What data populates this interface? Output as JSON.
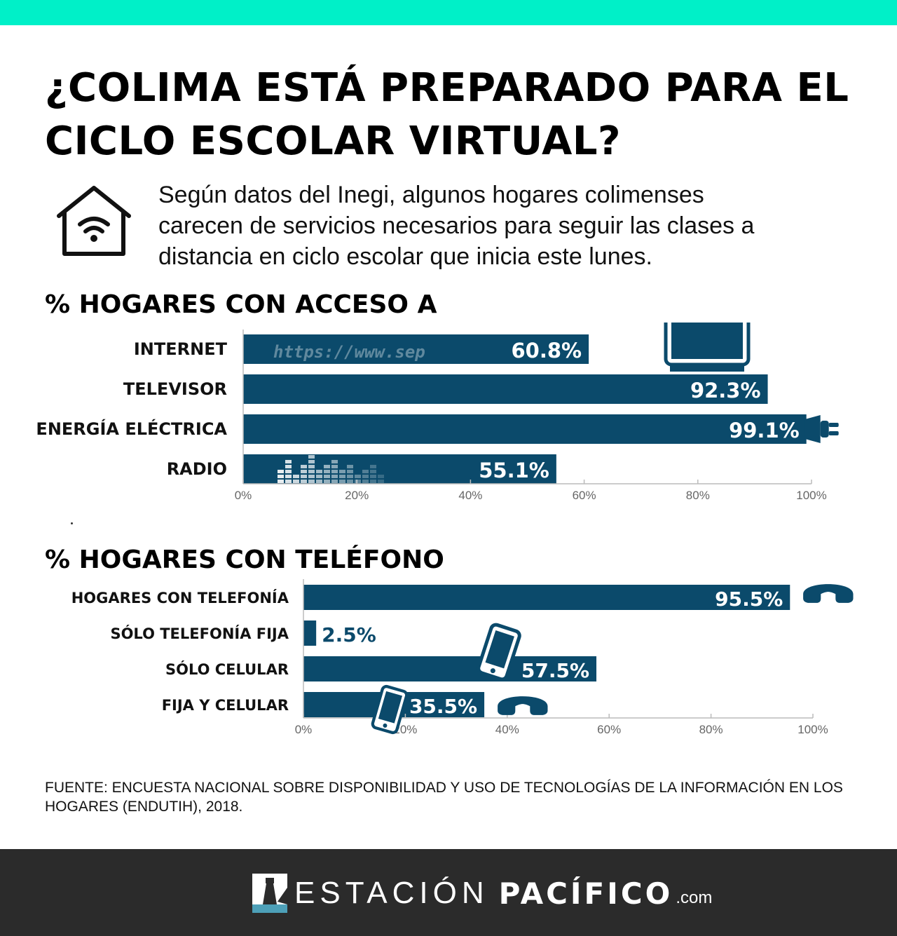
{
  "title": "¿COLIMA ESTÁ PREPARADO PARA EL CICLO ESCOLAR VIRTUAL?",
  "intro": "Según datos del Inegi, algunos hogares colimenses carecen de servicios  necesarios para seguir las clases a distancia en ciclo escolar que inicia este lunes.",
  "colors": {
    "accent": "#00f0c8",
    "bar": "#0b4a6b",
    "footer": "#2b2b2b"
  },
  "icons": [
    "house-wifi-icon",
    "tv-icon",
    "plug-icon",
    "equalizer-icon",
    "url-text-icon",
    "phone-handset-icon",
    "mobile-phone-icon"
  ],
  "chart_data": [
    {
      "type": "bar",
      "orientation": "horizontal",
      "title": "% HOGARES CON ACCESO A",
      "categories": [
        "INTERNET",
        "TELEVISOR",
        "ENERGÍA ELÉCTRICA",
        "RADIO"
      ],
      "values": [
        60.8,
        92.3,
        99.1,
        55.1
      ],
      "value_labels": [
        "60.8%",
        "92.3%",
        "99.1%",
        "55.1%"
      ],
      "xlim": [
        0,
        100
      ],
      "ticks": [
        "0%",
        "20%",
        "40%",
        "60%",
        "80%",
        "100%"
      ],
      "url_watermark": "https://www.sep",
      "grid": false
    },
    {
      "type": "bar",
      "orientation": "horizontal",
      "title": "% HOGARES CON TELÉFONO",
      "categories": [
        "HOGARES CON TELEFONÍA",
        "SÓLO TELEFONÍA FIJA",
        "SÓLO CELULAR",
        "FIJA Y CELULAR"
      ],
      "values": [
        95.5,
        2.5,
        57.5,
        35.5
      ],
      "value_labels": [
        "95.5%",
        "2.5%",
        "57.5%",
        "35.5%"
      ],
      "xlim": [
        0,
        100
      ],
      "ticks": [
        "0%",
        "20%",
        "40%",
        "60%",
        "80%",
        "100%"
      ],
      "grid": false
    }
  ],
  "source": "FUENTE: ENCUESTA NACIONAL SOBRE DISPONIBILIDAD Y USO DE TECNOLOGÍAS DE LA INFORMACIÓN EN LOS HOGARES (ENDUTIH), 2018.",
  "footer": {
    "brand_light": "ESTACIÓN",
    "brand_bold": "PACÍFICO",
    "brand_com": ".com"
  }
}
